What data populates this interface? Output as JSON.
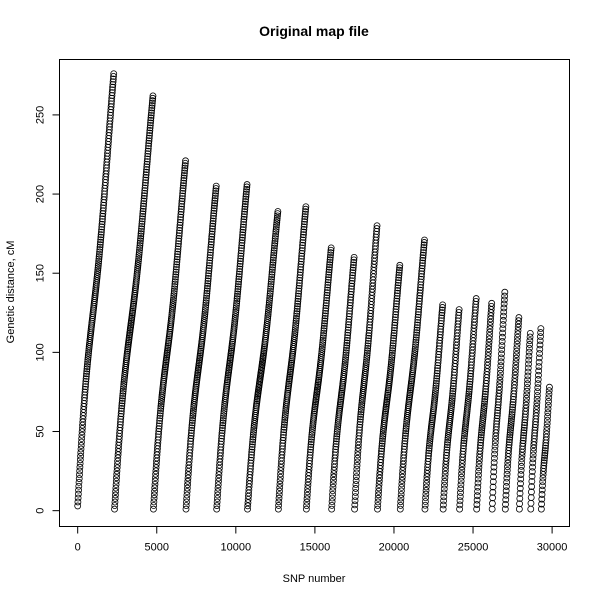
{
  "chart_data": {
    "type": "scatter",
    "title": "Original map file",
    "xlabel": "SNP number",
    "ylabel": "Genetic distance, cM",
    "xlim": [
      -1150,
      31100
    ],
    "ylim": [
      -10,
      285
    ],
    "x_ticks": [
      0,
      5000,
      10000,
      15000,
      20000,
      25000,
      30000
    ],
    "y_ticks": [
      0,
      50,
      100,
      150,
      200,
      250
    ],
    "x_tick_labels": [
      "0",
      "5000",
      "10000",
      "15000",
      "20000",
      "25000",
      "30000"
    ],
    "y_tick_labels": [
      "0",
      "50",
      "100",
      "150",
      "200",
      "250"
    ],
    "marker": "open-circle",
    "grid": false,
    "series": [
      {
        "x": [
          0,
          2280
        ],
        "y": [
          3,
          276
        ]
      },
      {
        "x": [
          2330,
          4760
        ],
        "y": [
          1,
          262
        ]
      },
      {
        "x": [
          4790,
          6820
        ],
        "y": [
          1,
          221
        ]
      },
      {
        "x": [
          6850,
          8760
        ],
        "y": [
          1,
          205
        ]
      },
      {
        "x": [
          8790,
          10710
        ],
        "y": [
          1,
          206
        ]
      },
      {
        "x": [
          10740,
          12660
        ],
        "y": [
          1,
          189
        ]
      },
      {
        "x": [
          12690,
          14430
        ],
        "y": [
          1,
          192
        ]
      },
      {
        "x": [
          14460,
          16030
        ],
        "y": [
          1,
          166
        ]
      },
      {
        "x": [
          16060,
          17480
        ],
        "y": [
          1,
          160
        ]
      },
      {
        "x": [
          17510,
          18930
        ],
        "y": [
          1,
          180
        ]
      },
      {
        "x": [
          18960,
          20370
        ],
        "y": [
          1,
          155
        ]
      },
      {
        "x": [
          20400,
          21930
        ],
        "y": [
          1,
          171
        ]
      },
      {
        "x": [
          21960,
          23080
        ],
        "y": [
          1,
          130
        ]
      },
      {
        "x": [
          23110,
          24120
        ],
        "y": [
          1,
          127
        ]
      },
      {
        "x": [
          24150,
          25200
        ],
        "y": [
          1,
          134
        ]
      },
      {
        "x": [
          25230,
          26180
        ],
        "y": [
          1,
          131
        ]
      },
      {
        "x": [
          26210,
          27010
        ],
        "y": [
          1,
          138
        ]
      },
      {
        "x": [
          27040,
          27900
        ],
        "y": [
          1,
          122
        ]
      },
      {
        "x": [
          27930,
          28620
        ],
        "y": [
          1,
          112
        ]
      },
      {
        "x": [
          28650,
          29290
        ],
        "y": [
          1,
          115
        ]
      },
      {
        "x": [
          29320,
          29830
        ],
        "y": [
          1,
          78
        ]
      }
    ]
  }
}
